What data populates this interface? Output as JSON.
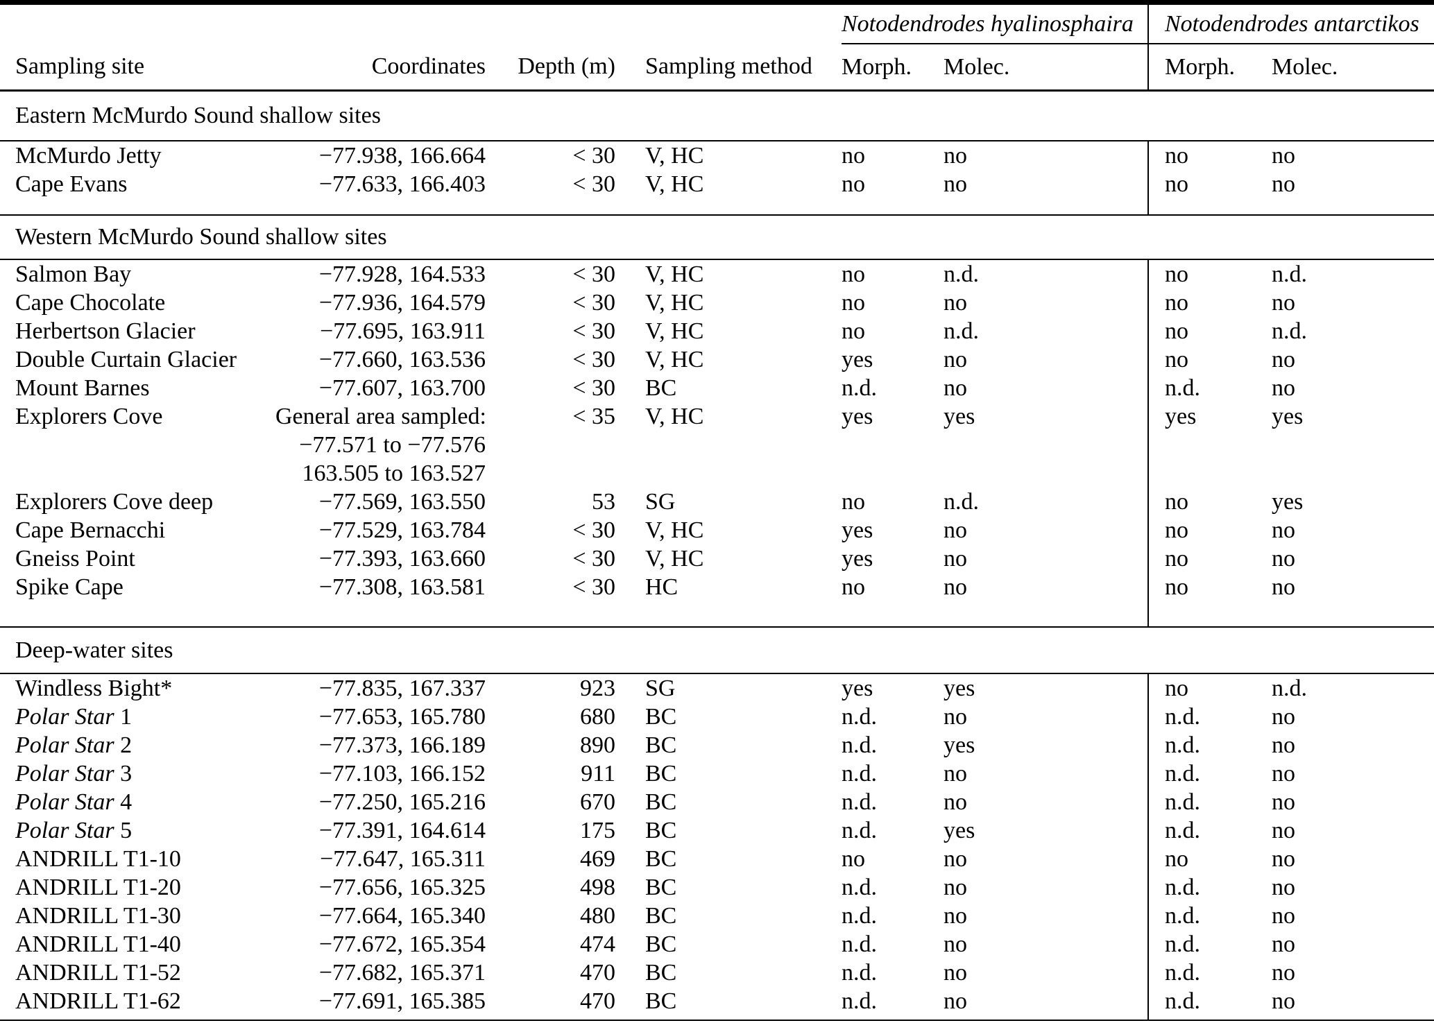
{
  "table": {
    "species_groups": [
      {
        "name": "Notodendrodes hyalinosphaira",
        "subcolumns": [
          "Morph.",
          "Molec."
        ]
      },
      {
        "name": "Notodendrodes antarctikos",
        "subcolumns": [
          "Morph.",
          "Molec."
        ]
      }
    ],
    "columns": {
      "site": "Sampling site",
      "coordinates": "Coordinates",
      "depth": "Depth (m)",
      "method": "Sampling method",
      "nh_morph": "Morph.",
      "nh_molec": "Molec.",
      "na_morph": "Morph.",
      "na_molec": "Molec."
    },
    "sections": [
      {
        "label": "Eastern McMurdo Sound shallow sites",
        "rows": [
          {
            "site_italic": "",
            "site": "McMurdo Jetty",
            "coordinates": [
              "−77.938, 166.664"
            ],
            "depth": "< 30",
            "method": "V, HC",
            "nh_morph": "no",
            "nh_molec": "no",
            "na_morph": "no",
            "na_molec": "no"
          },
          {
            "site_italic": "",
            "site": "Cape Evans",
            "coordinates": [
              "−77.633, 166.403"
            ],
            "depth": "< 30",
            "method": "V, HC",
            "nh_morph": "no",
            "nh_molec": "no",
            "na_morph": "no",
            "na_molec": "no"
          }
        ]
      },
      {
        "label": "Western McMurdo Sound shallow sites",
        "rows": [
          {
            "site_italic": "",
            "site": "Salmon Bay",
            "coordinates": [
              "−77.928, 164.533"
            ],
            "depth": "< 30",
            "method": "V, HC",
            "nh_morph": "no",
            "nh_molec": "n.d.",
            "na_morph": "no",
            "na_molec": "n.d."
          },
          {
            "site_italic": "",
            "site": "Cape Chocolate",
            "coordinates": [
              "−77.936, 164.579"
            ],
            "depth": "< 30",
            "method": "V, HC",
            "nh_morph": "no",
            "nh_molec": "no",
            "na_morph": "no",
            "na_molec": "no"
          },
          {
            "site_italic": "",
            "site": "Herbertson Glacier",
            "coordinates": [
              "−77.695, 163.911"
            ],
            "depth": "< 30",
            "method": "V, HC",
            "nh_morph": "no",
            "nh_molec": "n.d.",
            "na_morph": "no",
            "na_molec": "n.d."
          },
          {
            "site_italic": "",
            "site": "Double Curtain Glacier",
            "coordinates": [
              "−77.660, 163.536"
            ],
            "depth": "< 30",
            "method": "V, HC",
            "nh_morph": "yes",
            "nh_molec": "no",
            "na_morph": "no",
            "na_molec": "no"
          },
          {
            "site_italic": "",
            "site": "Mount Barnes",
            "coordinates": [
              "−77.607, 163.700"
            ],
            "depth": "< 30",
            "method": "BC",
            "nh_morph": "n.d.",
            "nh_molec": "no",
            "na_morph": "n.d.",
            "na_molec": "no"
          },
          {
            "site_italic": "",
            "site": "Explorers Cove",
            "coordinates": [
              "General area sampled:",
              "−77.571 to −77.576",
              "163.505 to 163.527"
            ],
            "depth": "< 35",
            "method": "V, HC",
            "nh_morph": "yes",
            "nh_molec": "yes",
            "na_morph": "yes",
            "na_molec": "yes"
          },
          {
            "site_italic": "",
            "site": "Explorers Cove deep",
            "coordinates": [
              "−77.569, 163.550"
            ],
            "depth": "53",
            "method": "SG",
            "nh_morph": "no",
            "nh_molec": "n.d.",
            "na_morph": "no",
            "na_molec": "yes"
          },
          {
            "site_italic": "",
            "site": "Cape Bernacchi",
            "coordinates": [
              "−77.529, 163.784"
            ],
            "depth": "< 30",
            "method": "V, HC",
            "nh_morph": "yes",
            "nh_molec": "no",
            "na_morph": "no",
            "na_molec": "no"
          },
          {
            "site_italic": "",
            "site": "Gneiss Point",
            "coordinates": [
              "−77.393, 163.660"
            ],
            "depth": "< 30",
            "method": "V, HC",
            "nh_morph": "yes",
            "nh_molec": "no",
            "na_morph": "no",
            "na_molec": "no"
          },
          {
            "site_italic": "",
            "site": "Spike Cape",
            "coordinates": [
              "−77.308, 163.581"
            ],
            "depth": "< 30",
            "method": "HC",
            "nh_morph": "no",
            "nh_molec": "no",
            "na_morph": "no",
            "na_molec": "no"
          }
        ]
      },
      {
        "label": "Deep-water sites",
        "rows": [
          {
            "site_italic": "",
            "site": "Windless Bight*",
            "coordinates": [
              "−77.835, 167.337"
            ],
            "depth": "923",
            "method": "SG",
            "nh_morph": "yes",
            "nh_molec": "yes",
            "na_morph": "no",
            "na_molec": "n.d."
          },
          {
            "site_italic": "Polar Star",
            "site": " 1",
            "coordinates": [
              "−77.653, 165.780"
            ],
            "depth": "680",
            "method": "BC",
            "nh_morph": "n.d.",
            "nh_molec": "no",
            "na_morph": "n.d.",
            "na_molec": "no"
          },
          {
            "site_italic": "Polar Star",
            "site": " 2",
            "coordinates": [
              "−77.373, 166.189"
            ],
            "depth": "890",
            "method": "BC",
            "nh_morph": "n.d.",
            "nh_molec": "yes",
            "na_morph": "n.d.",
            "na_molec": "no"
          },
          {
            "site_italic": "Polar Star",
            "site": " 3",
            "coordinates": [
              "−77.103, 166.152"
            ],
            "depth": "911",
            "method": "BC",
            "nh_morph": "n.d.",
            "nh_molec": "no",
            "na_morph": "n.d.",
            "na_molec": "no"
          },
          {
            "site_italic": "Polar Star",
            "site": " 4",
            "coordinates": [
              "−77.250, 165.216"
            ],
            "depth": "670",
            "method": "BC",
            "nh_morph": "n.d.",
            "nh_molec": "no",
            "na_morph": "n.d.",
            "na_molec": "no"
          },
          {
            "site_italic": "Polar Star",
            "site": " 5",
            "coordinates": [
              "−77.391, 164.614"
            ],
            "depth": "175",
            "method": "BC",
            "nh_morph": "n.d.",
            "nh_molec": "yes",
            "na_morph": "n.d.",
            "na_molec": "no"
          },
          {
            "site_italic": "",
            "site": "ANDRILL T1-10",
            "coordinates": [
              "−77.647, 165.311"
            ],
            "depth": "469",
            "method": "BC",
            "nh_morph": "no",
            "nh_molec": "no",
            "na_morph": "no",
            "na_molec": "no"
          },
          {
            "site_italic": "",
            "site": "ANDRILL T1-20",
            "coordinates": [
              "−77.656, 165.325"
            ],
            "depth": "498",
            "method": "BC",
            "nh_morph": "n.d.",
            "nh_molec": "no",
            "na_morph": "n.d.",
            "na_molec": "no"
          },
          {
            "site_italic": "",
            "site": "ANDRILL T1-30",
            "coordinates": [
              "−77.664, 165.340"
            ],
            "depth": "480",
            "method": "BC",
            "nh_morph": "n.d.",
            "nh_molec": "no",
            "na_morph": "n.d.",
            "na_molec": "no"
          },
          {
            "site_italic": "",
            "site": "ANDRILL T1-40",
            "coordinates": [
              "−77.672, 165.354"
            ],
            "depth": "474",
            "method": "BC",
            "nh_morph": "n.d.",
            "nh_molec": "no",
            "na_morph": "n.d.",
            "na_molec": "no"
          },
          {
            "site_italic": "",
            "site": "ANDRILL T1-52",
            "coordinates": [
              "−77.682, 165.371"
            ],
            "depth": "470",
            "method": "BC",
            "nh_morph": "n.d.",
            "nh_molec": "no",
            "na_morph": "n.d.",
            "na_molec": "no"
          },
          {
            "site_italic": "",
            "site": "ANDRILL T1-62",
            "coordinates": [
              "−77.691, 165.385"
            ],
            "depth": "470",
            "method": "BC",
            "nh_morph": "n.d.",
            "nh_molec": "no",
            "na_morph": "n.d.",
            "na_molec": "no"
          }
        ]
      }
    ]
  }
}
